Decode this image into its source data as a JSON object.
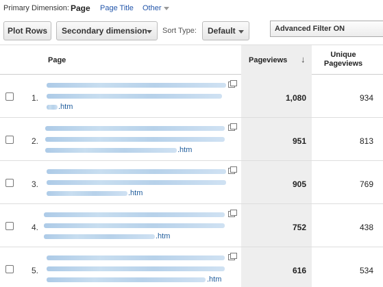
{
  "dimension_bar": {
    "label": "Primary Dimension:",
    "active": "Page",
    "page_title_link": "Page Title",
    "other_link": "Other"
  },
  "toolbar": {
    "plot_rows": "Plot Rows",
    "secondary_dimension": "Secondary dimension",
    "sort_type_label": "Sort Type:",
    "sort_type_value": "Default",
    "advanced_filter": "Advanced Filter ON"
  },
  "table": {
    "headers": {
      "page": "Page",
      "pageviews": "Pageviews",
      "unique_pageviews": "Unique Pageviews"
    },
    "rows": [
      {
        "index": "1.",
        "url_suffix": ".htm",
        "pageviews": "1,080",
        "unique_pageviews": "934"
      },
      {
        "index": "2.",
        "url_suffix": ".htm",
        "pageviews": "951",
        "unique_pageviews": "813"
      },
      {
        "index": "3.",
        "url_suffix": ".htm",
        "pageviews": "905",
        "unique_pageviews": "769"
      },
      {
        "index": "4.",
        "url_suffix": ".htm",
        "pageviews": "752",
        "unique_pageviews": "438"
      },
      {
        "index": "5.",
        "url_suffix": ".htm",
        "pageviews": "616",
        "unique_pageviews": "534"
      }
    ]
  },
  "colors": {
    "link": "#2255aa",
    "sorted_column_bg": "#eeeeee",
    "redacted_url": "#b3cfe9"
  }
}
